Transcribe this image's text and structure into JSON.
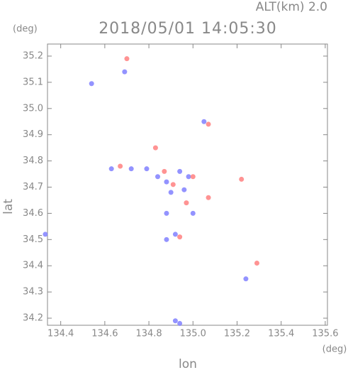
{
  "chart_data": {
    "type": "scatter",
    "title": "2018/05/01 14:05:30",
    "subtitle": "ALT(km)  2.0",
    "y_unit": "(deg)",
    "x_unit": "(deg)",
    "x_label": "lon",
    "y_label": "lat",
    "xlim": [
      134.34,
      135.61
    ],
    "ylim": [
      34.173,
      35.246
    ],
    "xticks": [
      134.4,
      134.6,
      134.8,
      {
        "value": 135,
        "label": "135.0"
      },
      135.2,
      135.4,
      135.6
    ],
    "yticks": [
      34.2,
      34.3,
      34.4,
      34.5,
      34.6,
      34.7,
      34.8,
      34.9,
      {
        "value": 35,
        "label": "35.0"
      },
      35.1,
      35.2
    ],
    "series": [
      {
        "color": "#8080ff",
        "x": [
          134.33,
          134.54,
          134.69,
          134.63,
          134.72,
          134.79,
          134.84,
          134.88,
          134.9,
          134.88,
          134.92,
          134.88,
          134.94,
          134.92,
          135.24,
          135.05,
          134.98,
          134.94,
          135.0,
          134.96
        ],
        "values": [
          34.52,
          35.095,
          35.14,
          34.77,
          34.77,
          34.77,
          34.74,
          34.72,
          34.68,
          34.6,
          34.52,
          34.5,
          34.18,
          34.19,
          34.35,
          34.95,
          34.74,
          34.76,
          34.6,
          34.69
        ]
      },
      {
        "color": "#ff8080",
        "x": [
          134.67,
          134.83,
          134.87,
          135.07,
          135.0,
          135.29,
          135.22,
          134.94,
          134.7,
          134.97,
          135.07,
          134.91
        ],
        "values": [
          34.78,
          34.85,
          34.76,
          34.66,
          34.74,
          34.41,
          34.73,
          34.51,
          35.19,
          34.64,
          34.94,
          34.71
        ]
      }
    ]
  }
}
